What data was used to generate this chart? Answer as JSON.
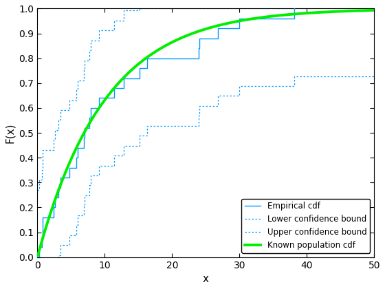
{
  "title": "",
  "xlabel": "x",
  "ylabel": "F(x)",
  "xlim": [
    0,
    50
  ],
  "ylim": [
    0,
    1
  ],
  "n_samples": 25,
  "random_seed": 7,
  "rate": 0.1,
  "alpha": 0.05,
  "empirical_color": "#0099FF",
  "confidence_color": "#0099FF",
  "population_color": "#00EE00",
  "empirical_linewidth": 1.0,
  "confidence_linewidth": 0.9,
  "population_linewidth": 2.8,
  "legend_labels": [
    "Empirical cdf",
    "Lower confidence bound",
    "Upper confidence bound",
    "Known population cdf"
  ],
  "legend_loc": "lower right",
  "xticks": [
    0,
    10,
    20,
    30,
    40,
    50
  ],
  "yticks": [
    0,
    0.1,
    0.2,
    0.3,
    0.4,
    0.5,
    0.6,
    0.7,
    0.8,
    0.9,
    1.0
  ],
  "background_color": "#FFFFFF",
  "spine_color": "#000000",
  "tick_direction": "in",
  "legend_fontsize": 8.5,
  "axis_fontsize": 11
}
